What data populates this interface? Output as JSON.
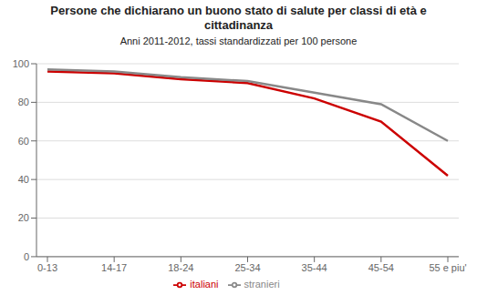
{
  "chart_data": {
    "type": "line",
    "title": "Persone che dichiarano un buono stato di salute per classi di età e cittadinanza",
    "subtitle": "Anni 2011-2012, tassi standardizzati per 100 persone",
    "categories": [
      "0-13",
      "14-17",
      "18-24",
      "25-34",
      "35-44",
      "45-54",
      "55 e piu'"
    ],
    "series": [
      {
        "name": "italiani",
        "color": "#cc0000",
        "values": [
          96,
          95,
          92,
          90,
          82,
          70,
          42
        ]
      },
      {
        "name": "stranieri",
        "color": "#888888",
        "values": [
          97,
          96,
          93,
          91,
          85,
          79,
          60
        ]
      }
    ],
    "ylim": [
      0,
      100
    ],
    "yticks": [
      0,
      20,
      40,
      60,
      80,
      100
    ],
    "grid": true,
    "legend": "bottom"
  }
}
